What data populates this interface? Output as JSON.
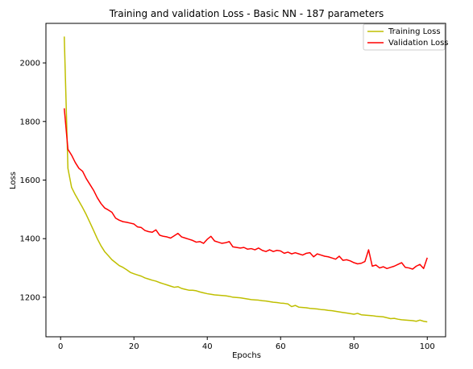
{
  "chart_data": {
    "type": "line",
    "title": "Training and validation Loss - Basic NN - 187 parameters",
    "xlabel": "Epochs",
    "ylabel": "Loss",
    "xlim": [
      -4,
      105
    ],
    "ylim": [
      1065,
      2135
    ],
    "xticks": [
      0,
      20,
      40,
      60,
      80,
      100
    ],
    "yticks": [
      1200,
      1400,
      1600,
      1800,
      2000
    ],
    "grid": false,
    "legend_position": "top-right",
    "series": [
      {
        "name": "Training Loss",
        "color": "#bfbf00",
        "x": [
          1,
          2,
          3,
          4,
          5,
          6,
          7,
          8,
          9,
          10,
          11,
          12,
          13,
          14,
          15,
          16,
          17,
          18,
          19,
          20,
          21,
          22,
          23,
          24,
          25,
          26,
          27,
          28,
          29,
          30,
          31,
          32,
          33,
          34,
          35,
          36,
          37,
          38,
          39,
          40,
          41,
          42,
          43,
          44,
          45,
          46,
          47,
          48,
          49,
          50,
          51,
          52,
          53,
          54,
          55,
          56,
          57,
          58,
          59,
          60,
          61,
          62,
          63,
          64,
          65,
          66,
          67,
          68,
          69,
          70,
          71,
          72,
          73,
          74,
          75,
          76,
          77,
          78,
          79,
          80,
          81,
          82,
          83,
          84,
          85,
          86,
          87,
          88,
          89,
          90,
          91,
          92,
          93,
          94,
          95,
          96,
          97,
          98,
          99,
          100
        ],
        "values": [
          2090,
          1640,
          1575,
          1550,
          1528,
          1506,
          1482,
          1455,
          1428,
          1400,
          1376,
          1356,
          1342,
          1328,
          1318,
          1308,
          1302,
          1294,
          1285,
          1280,
          1276,
          1272,
          1266,
          1262,
          1258,
          1255,
          1250,
          1246,
          1242,
          1238,
          1234,
          1236,
          1230,
          1227,
          1224,
          1224,
          1222,
          1218,
          1215,
          1212,
          1210,
          1208,
          1207,
          1206,
          1205,
          1203,
          1200,
          1199,
          1198,
          1196,
          1194,
          1192,
          1191,
          1190,
          1188,
          1187,
          1185,
          1183,
          1182,
          1180,
          1179,
          1177,
          1168,
          1172,
          1166,
          1165,
          1164,
          1162,
          1161,
          1160,
          1158,
          1157,
          1155,
          1154,
          1152,
          1150,
          1148,
          1146,
          1144,
          1142,
          1145,
          1140,
          1139,
          1138,
          1137,
          1135,
          1134,
          1133,
          1130,
          1127,
          1128,
          1125,
          1123,
          1122,
          1121,
          1120,
          1118,
          1122,
          1118,
          1116
        ]
      },
      {
        "name": "Validation Loss",
        "color": "#ff0000",
        "x": [
          1,
          2,
          3,
          4,
          5,
          6,
          7,
          8,
          9,
          10,
          11,
          12,
          13,
          14,
          15,
          16,
          17,
          18,
          19,
          20,
          21,
          22,
          23,
          24,
          25,
          26,
          27,
          28,
          29,
          30,
          31,
          32,
          33,
          34,
          35,
          36,
          37,
          38,
          39,
          40,
          41,
          42,
          43,
          44,
          45,
          46,
          47,
          48,
          49,
          50,
          51,
          52,
          53,
          54,
          55,
          56,
          57,
          58,
          59,
          60,
          61,
          62,
          63,
          64,
          65,
          66,
          67,
          68,
          69,
          70,
          71,
          72,
          73,
          74,
          75,
          76,
          77,
          78,
          79,
          80,
          81,
          82,
          83,
          84,
          85,
          86,
          87,
          88,
          89,
          90,
          91,
          92,
          93,
          94,
          95,
          96,
          97,
          98,
          99,
          100
        ],
        "values": [
          1845,
          1705,
          1685,
          1660,
          1640,
          1630,
          1605,
          1585,
          1565,
          1540,
          1520,
          1505,
          1498,
          1490,
          1470,
          1463,
          1458,
          1456,
          1453,
          1450,
          1440,
          1438,
          1428,
          1424,
          1422,
          1430,
          1412,
          1408,
          1406,
          1402,
          1410,
          1418,
          1406,
          1402,
          1398,
          1394,
          1388,
          1390,
          1384,
          1398,
          1408,
          1392,
          1388,
          1384,
          1386,
          1390,
          1372,
          1370,
          1368,
          1370,
          1364,
          1366,
          1362,
          1368,
          1360,
          1356,
          1362,
          1356,
          1360,
          1358,
          1350,
          1354,
          1348,
          1352,
          1348,
          1344,
          1350,
          1352,
          1338,
          1348,
          1344,
          1340,
          1338,
          1334,
          1330,
          1340,
          1326,
          1328,
          1324,
          1318,
          1314,
          1316,
          1322,
          1362,
          1306,
          1310,
          1300,
          1304,
          1298,
          1302,
          1306,
          1312,
          1318,
          1302,
          1300,
          1296,
          1306,
          1312,
          1298,
          1335
        ]
      }
    ]
  }
}
